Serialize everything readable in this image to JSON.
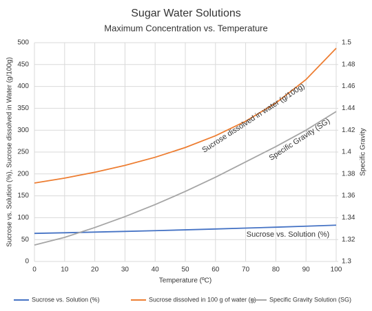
{
  "chart_data": {
    "type": "line",
    "title": "Sugar Water Solutions",
    "subtitle": "Maximum Concentration vs. Temperature",
    "x_label": "Temperature (ºC)",
    "y_label": "Sucrose vs. Solution (%), Sucrose dissolved in Water (g/100g)",
    "y2_label": "Specific Gravity",
    "x": [
      0,
      10,
      20,
      30,
      40,
      50,
      60,
      70,
      80,
      90,
      100
    ],
    "series": [
      {
        "name": "Sucrose vs. Solution (%)",
        "color": "#4472c4",
        "values": [
          64.18,
          65.58,
          67.09,
          68.7,
          70.42,
          72.25,
          74.18,
          76.22,
          78.36,
          80.61,
          82.97
        ]
      },
      {
        "name": "Sucrose dissolved in 100 g of water (g)",
        "color": "#ed7d31",
        "values": [
          179.2,
          190.5,
          203.9,
          219.5,
          238.1,
          260.4,
          287.3,
          320.5,
          362.1,
          415.7,
          487.2
        ]
      },
      {
        "name": "Specific Gravity Solution (SG)",
        "color": "#a5a5a5",
        "axis": "y2",
        "values": [
          1.315,
          1.322,
          1.331,
          1.341,
          1.352,
          1.364,
          1.377,
          1.391,
          1.405,
          1.42,
          1.437
        ]
      }
    ],
    "annotations": [
      "Sucrose dissolved in water (g/100g)",
      "Specific Gravity (SG)",
      "Sucrose vs. Solution (%)"
    ],
    "xlim": [
      0,
      100
    ],
    "xticks": [
      0,
      10,
      20,
      30,
      40,
      50,
      60,
      70,
      80,
      90,
      100
    ],
    "ylim": [
      0,
      500
    ],
    "yticks": [
      0,
      50,
      100,
      150,
      200,
      250,
      300,
      350,
      400,
      450,
      500
    ],
    "y2lim": [
      1.3,
      1.5
    ],
    "y2ticks": [
      1.3,
      1.32,
      1.34,
      1.36,
      1.38,
      1.4,
      1.42,
      1.44,
      1.46,
      1.48,
      1.5
    ],
    "grid": true,
    "legend": "bottom"
  }
}
